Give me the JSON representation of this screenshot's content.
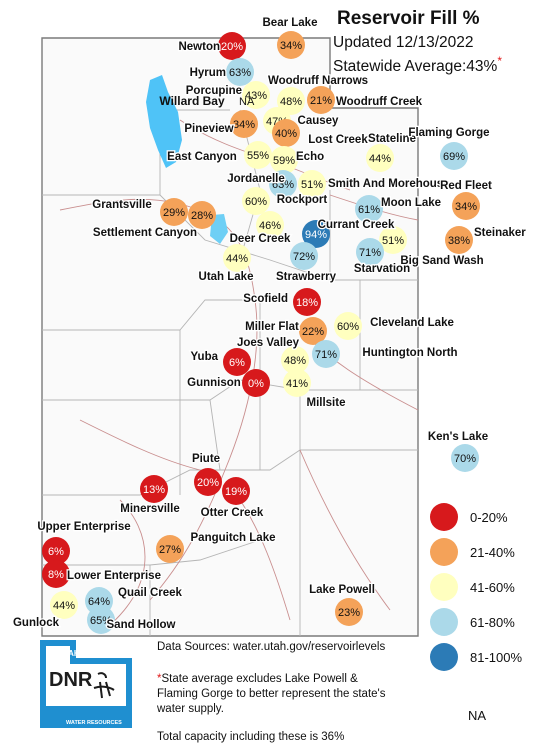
{
  "header": {
    "title": "Reservoir Fill %",
    "updated": "Updated 12/13/2022",
    "statewide_text": "Statewide Average:43%",
    "statewide_asterisk": "*"
  },
  "legend": {
    "items": [
      {
        "label": "0-20%",
        "color": "#d7191c"
      },
      {
        "label": "21-40%",
        "color": "#f4a259"
      },
      {
        "label": "41-60%",
        "color": "#ffffbf"
      },
      {
        "label": "61-80%",
        "color": "#abd9e9"
      },
      {
        "label": "81-100%",
        "color": "#2c7bb6"
      }
    ],
    "na_label": "NA"
  },
  "footer": {
    "sources": "Data Sources: water.utah.gov/reservoirlevels",
    "note_asterisk": "*",
    "note": "State average excludes Lake Powell & Flaming Gorge to better represent the state's water supply.",
    "total": "Total capacity including these is 36%"
  },
  "logo": {
    "top_text": "UTAH",
    "main_text": "DNR",
    "bottom_text": "WATER RESOURCES"
  },
  "reservoirs": [
    {
      "name": "Newton",
      "value": "20%",
      "category": "0-20%"
    },
    {
      "name": "Bear Lake",
      "value": "34%",
      "category": "21-40%"
    },
    {
      "name": "Hyrum",
      "value": "63%",
      "category": "61-80%"
    },
    {
      "name": "Porcupine",
      "value": "43%",
      "category": "41-60%"
    },
    {
      "name": "Willard Bay",
      "value": "NA",
      "category": "NA"
    },
    {
      "name": "Woodruff Narrows",
      "value": "48%",
      "category": "41-60%"
    },
    {
      "name": "Woodruff Creek",
      "value": "21%",
      "category": "21-40%"
    },
    {
      "name": "Causey",
      "value": "47%",
      "category": "41-60%"
    },
    {
      "name": "Pineview",
      "value": "34%",
      "category": "21-40%"
    },
    {
      "name": "Lost Creek",
      "value": "40%",
      "category": "21-40%"
    },
    {
      "name": "East Canyon",
      "value": "55%",
      "category": "41-60%"
    },
    {
      "name": "Echo",
      "value": "59%",
      "category": "41-60%"
    },
    {
      "name": "Stateline",
      "value": "44%",
      "category": "41-60%"
    },
    {
      "name": "Flaming Gorge",
      "value": "69%",
      "category": "61-80%"
    },
    {
      "name": "Smith And Morehouse",
      "value": "51%",
      "category": "41-60%"
    },
    {
      "name": "Rockport",
      "value": "63%",
      "category": "61-80%"
    },
    {
      "name": "Jordanelle",
      "value": "60%",
      "category": "41-60%"
    },
    {
      "name": "Moon Lake",
      "value": "61%",
      "category": "61-80%"
    },
    {
      "name": "Red Fleet",
      "value": "34%",
      "category": "21-40%"
    },
    {
      "name": "Grantsville",
      "value": "29%",
      "category": "21-40%"
    },
    {
      "name": "Settlement Canyon",
      "value": "28%",
      "category": "21-40%"
    },
    {
      "name": "Deer Creek",
      "value": "46%",
      "category": "41-60%"
    },
    {
      "name": "Currant Creek",
      "value": "94%",
      "category": "81-100%"
    },
    {
      "name": "Big Sand Wash",
      "value": "51%",
      "category": "41-60%"
    },
    {
      "name": "Starvation",
      "value": "71%",
      "category": "61-80%"
    },
    {
      "name": "Steinaker",
      "value": "38%",
      "category": "21-40%"
    },
    {
      "name": "Utah Lake",
      "value": "44%",
      "category": "41-60%"
    },
    {
      "name": "Strawberry",
      "value": "72%",
      "category": "61-80%"
    },
    {
      "name": "Scofield",
      "value": "18%",
      "category": "0-20%"
    },
    {
      "name": "Miller Flat",
      "value": "22%",
      "category": "21-40%"
    },
    {
      "name": "Cleveland Lake",
      "value": "60%",
      "category": "41-60%"
    },
    {
      "name": "Joes Valley",
      "value": "48%",
      "category": "41-60%"
    },
    {
      "name": "Huntington North",
      "value": "71%",
      "category": "61-80%"
    },
    {
      "name": "Yuba",
      "value": "6%",
      "category": "0-20%"
    },
    {
      "name": "Gunnison",
      "value": "0%",
      "category": "0-20%"
    },
    {
      "name": "Millsite",
      "value": "41%",
      "category": "41-60%"
    },
    {
      "name": "Ken's Lake",
      "value": "70%",
      "category": "61-80%"
    },
    {
      "name": "Piute",
      "value": "20%",
      "category": "0-20%"
    },
    {
      "name": "Minersville",
      "value": "13%",
      "category": "0-20%"
    },
    {
      "name": "Otter Creek",
      "value": "19%",
      "category": "0-20%"
    },
    {
      "name": "Upper Enterprise",
      "value": "6%",
      "category": "0-20%"
    },
    {
      "name": "Panguitch Lake",
      "value": "27%",
      "category": "21-40%"
    },
    {
      "name": "Lower Enterprise",
      "value": "8%",
      "category": "0-20%"
    },
    {
      "name": "Quail Creek",
      "value": "64%",
      "category": "61-80%"
    },
    {
      "name": "Lake Powell",
      "value": "23%",
      "category": "21-40%"
    },
    {
      "name": "Gunlock",
      "value": "44%",
      "category": "41-60%"
    },
    {
      "name": "Sand Hollow",
      "value": "65%",
      "category": "61-80%"
    }
  ]
}
